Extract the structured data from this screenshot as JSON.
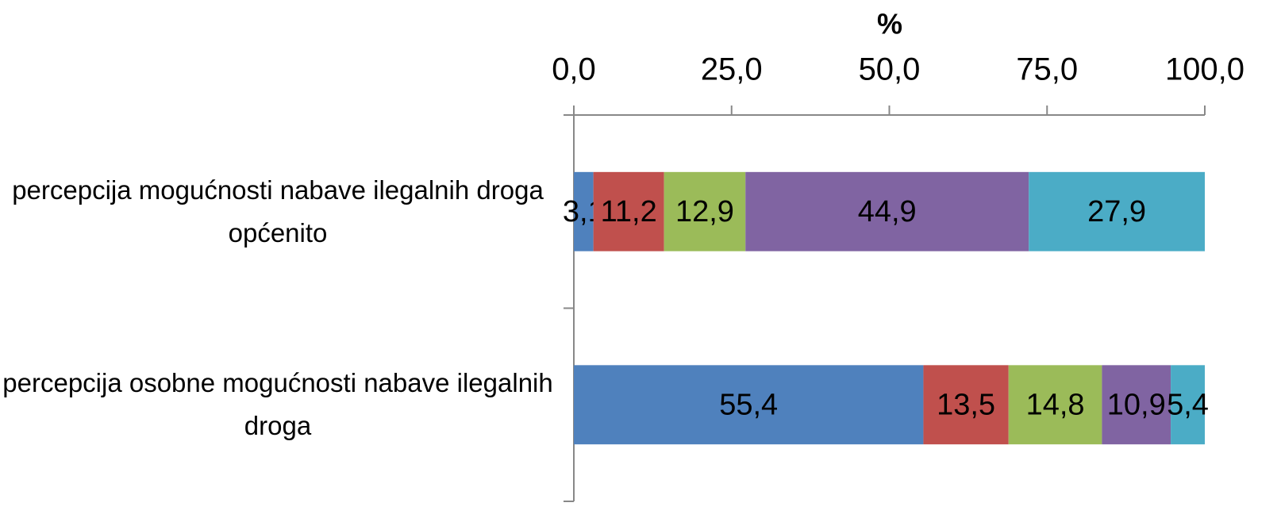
{
  "chart_data": {
    "type": "stacked_barh",
    "title": "%",
    "categories": [
      "percepcija mogućnosti nabave ilegalnih droga općenito",
      "percepcija osobne mogućnosti nabave ilegalnih droga"
    ],
    "series": [
      {
        "color": "#4f81bd",
        "values": [
          3.1,
          55.4
        ],
        "value_labels": [
          "3,1",
          "55,4"
        ]
      },
      {
        "color": "#c0504d",
        "values": [
          11.2,
          13.5
        ],
        "value_labels": [
          "11,2",
          "13,5"
        ]
      },
      {
        "color": "#9bbb59",
        "values": [
          12.9,
          14.8
        ],
        "value_labels": [
          "12,9",
          "14,8"
        ]
      },
      {
        "color": "#8064a2",
        "values": [
          44.9,
          10.9
        ],
        "value_labels": [
          "44,9",
          "10,9"
        ]
      },
      {
        "color": "#4bacc6",
        "values": [
          27.9,
          5.4
        ],
        "value_labels": [
          "27,9",
          "5,4"
        ]
      }
    ],
    "xlim": [
      0,
      100
    ],
    "xticks": [
      {
        "value": 0,
        "label": "0,0"
      },
      {
        "value": 25,
        "label": "25,0"
      },
      {
        "value": 50,
        "label": "50,0"
      },
      {
        "value": 75,
        "label": "75,0"
      },
      {
        "value": 100,
        "label": "100,0"
      }
    ]
  }
}
